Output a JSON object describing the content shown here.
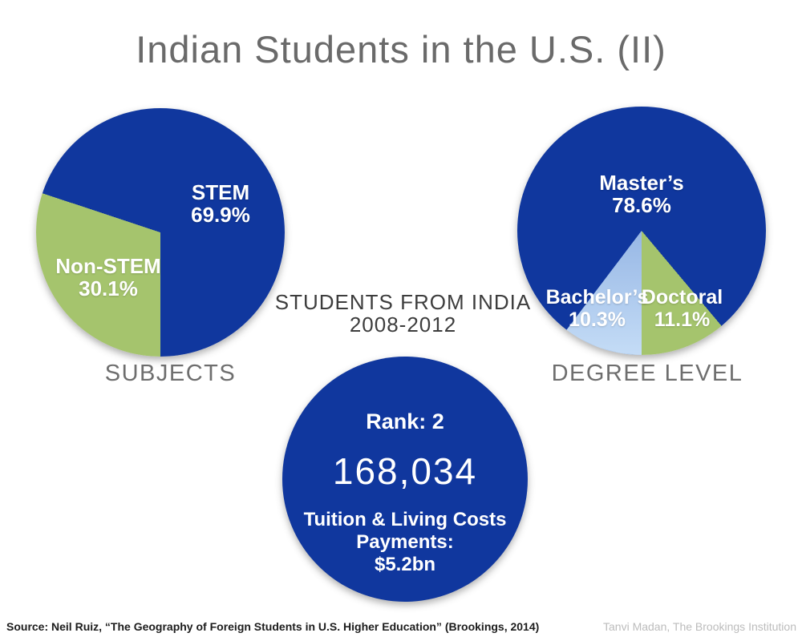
{
  "title": "Indian Students in the U.S. (II)",
  "center_caption": {
    "line1": "STUDENTS FROM INDIA",
    "line2": "2008-2012"
  },
  "colors": {
    "dark_blue": "#10379e",
    "green": "#a5c46d",
    "light_blue": "#a9c8ee",
    "title_gray": "#6a6a6a",
    "caption_gray": "#6e6e6e"
  },
  "chart_data": [
    {
      "type": "pie",
      "title": "SUBJECTS",
      "start_angle": 180,
      "slices": [
        {
          "label": "Non-STEM",
          "value": 30.1,
          "pct": "30.1%",
          "color": "#a5c46d"
        },
        {
          "label": "STEM",
          "value": 69.9,
          "pct": "69.9%",
          "color": "#10379e"
        }
      ]
    },
    {
      "type": "pie",
      "title": "DEGREE LEVEL",
      "start_angle": 140,
      "slices": [
        {
          "label": "Doctoral",
          "value": 11.1,
          "pct": "11.1%",
          "color": "#a5c46d"
        },
        {
          "label": "Bachelor’s",
          "value": 10.3,
          "pct": "10.3%",
          "color": "#a9c8ee"
        },
        {
          "label": "Master’s",
          "value": 78.6,
          "pct": "78.6%",
          "color": "#10379e"
        }
      ]
    }
  ],
  "stat_circle": {
    "rank_label": "Rank: 2",
    "total_students": "168,034",
    "tuition_lines": [
      "Tuition & Living Costs",
      "Payments:",
      "$5.2bn"
    ]
  },
  "footer": {
    "source": "Source: Neil Ruiz, “The Geography of Foreign Students in U.S. Higher Education” (Brookings, 2014)",
    "credit": "Tanvi Madan, The Brookings Institution"
  }
}
